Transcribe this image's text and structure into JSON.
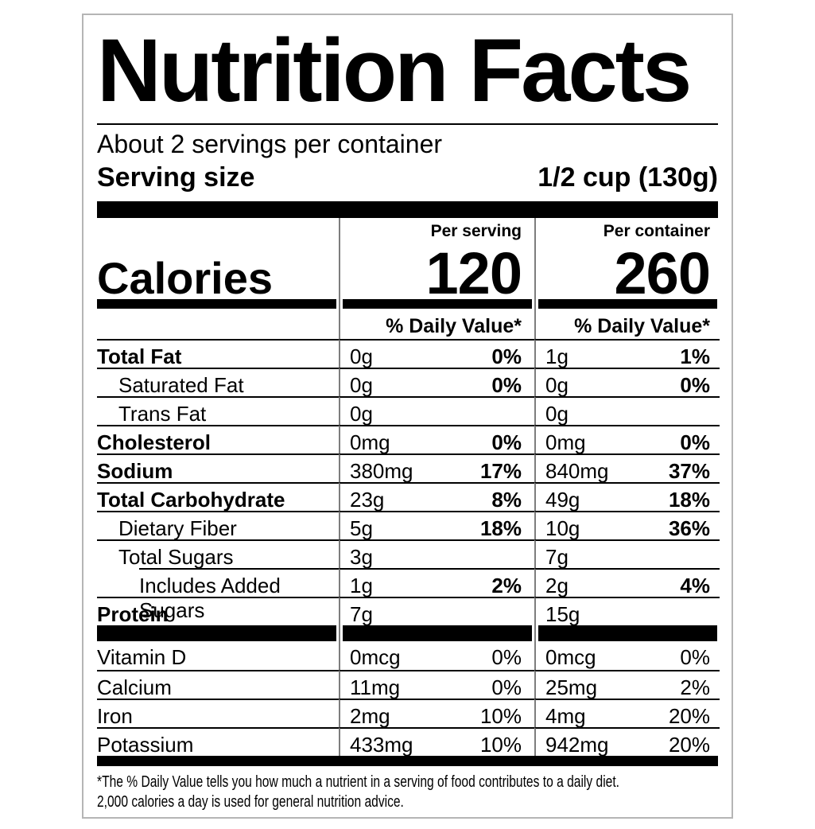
{
  "label": {
    "title": "Nutrition Facts",
    "servings_per_container": "About 2 servings per container",
    "serving_size_label": "Serving size",
    "serving_size_value": "1/2 cup (130g)",
    "columns": {
      "serving_header": "Per serving",
      "container_header": "Per container"
    },
    "calories": {
      "label": "Calories",
      "per_serving": "120",
      "per_container": "260"
    },
    "daily_value_header": "% Daily Value*",
    "nutrients": [
      {
        "name": "Total Fat",
        "bold": true,
        "indent": 0,
        "sep": "full",
        "serving_amount": "0g",
        "serving_dv": "0%",
        "container_amount": "1g",
        "container_dv": "1%"
      },
      {
        "name": "Saturated Fat",
        "bold": false,
        "indent": 1,
        "sep": "full",
        "serving_amount": "0g",
        "serving_dv": "0%",
        "container_amount": "0g",
        "container_dv": "0%"
      },
      {
        "name": "Trans Fat",
        "bold": false,
        "indent": 1,
        "sep": "full",
        "serving_amount": "0g",
        "serving_dv": "",
        "container_amount": "0g",
        "container_dv": ""
      },
      {
        "name": "Cholesterol",
        "bold": true,
        "indent": 0,
        "sep": "full",
        "serving_amount": "0mg",
        "serving_dv": "0%",
        "container_amount": "0mg",
        "container_dv": "0%"
      },
      {
        "name": "Sodium",
        "bold": true,
        "indent": 0,
        "sep": "full",
        "serving_amount": "380mg",
        "serving_dv": "17%",
        "container_amount": "840mg",
        "container_dv": "37%"
      },
      {
        "name": "Total Carbohydrate",
        "bold": true,
        "indent": 0,
        "sep": "full",
        "serving_amount": "23g",
        "serving_dv": "8%",
        "container_amount": "49g",
        "container_dv": "18%"
      },
      {
        "name": "Dietary Fiber",
        "bold": false,
        "indent": 1,
        "sep": "full",
        "serving_amount": "5g",
        "serving_dv": "18%",
        "container_amount": "10g",
        "container_dv": "36%"
      },
      {
        "name": "Total Sugars",
        "bold": false,
        "indent": 1,
        "sep": "full",
        "serving_amount": "3g",
        "serving_dv": "",
        "container_amount": "7g",
        "container_dv": ""
      },
      {
        "name": "Includes Added Sugars",
        "bold": false,
        "indent": 2,
        "sep": "indent",
        "serving_amount": "1g",
        "serving_dv": "2%",
        "container_amount": "2g",
        "container_dv": "4%"
      },
      {
        "name": "Protein",
        "bold": true,
        "indent": 0,
        "sep": "full",
        "serving_amount": "7g",
        "serving_dv": "",
        "container_amount": "15g",
        "container_dv": ""
      }
    ],
    "vitamins": [
      {
        "name": "Vitamin D",
        "sep": false,
        "serving_amount": "0mcg",
        "serving_dv": "0%",
        "container_amount": "0mcg",
        "container_dv": "0%"
      },
      {
        "name": "Calcium",
        "sep": true,
        "serving_amount": "11mg",
        "serving_dv": "0%",
        "container_amount": "25mg",
        "container_dv": "2%"
      },
      {
        "name": "Iron",
        "sep": true,
        "serving_amount": "2mg",
        "serving_dv": "10%",
        "container_amount": "4mg",
        "container_dv": "20%"
      },
      {
        "name": "Potassium",
        "sep": true,
        "serving_amount": "433mg",
        "serving_dv": "10%",
        "container_amount": "942mg",
        "container_dv": "20%"
      }
    ],
    "footnote_line1": "*The % Daily Value tells you how much a nutrient in a serving of food contributes to a daily diet.",
    "footnote_line2": "2,000 calories a day is used for general nutrition advice."
  },
  "colors": {
    "text": "#000000",
    "heavy_bar": "#000000",
    "column_divider": "#7d7d7d",
    "outer_border": "#b5b5b5",
    "background": "#ffffff"
  }
}
